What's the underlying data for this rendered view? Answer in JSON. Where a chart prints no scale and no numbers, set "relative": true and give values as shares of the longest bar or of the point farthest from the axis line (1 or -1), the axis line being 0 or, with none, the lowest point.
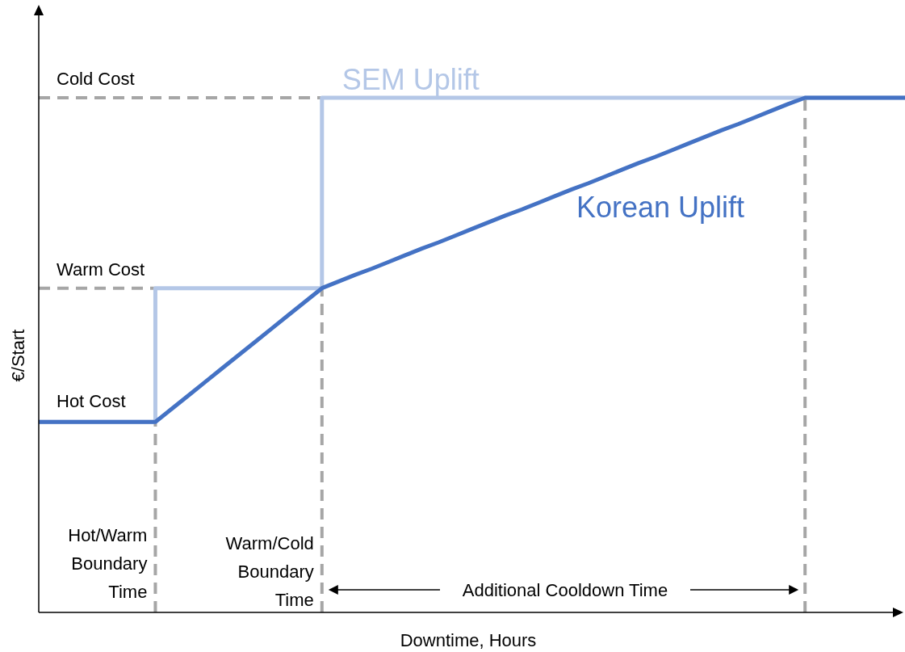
{
  "chart_data": {
    "type": "line",
    "relative": true,
    "xlabel": "Downtime, Hours",
    "ylabel": "€/Start",
    "categories": [
      null,
      null,
      null,
      null,
      null,
      null,
      null,
      null,
      null,
      null,
      null,
      null,
      null,
      null,
      null,
      null,
      null,
      null,
      null,
      null,
      null,
      null,
      null,
      null,
      null,
      null,
      null,
      null,
      null,
      null,
      null,
      null,
      null,
      null,
      null,
      null,
      null,
      null,
      null,
      null,
      null,
      null,
      null,
      null,
      null,
      null,
      null,
      null,
      null,
      null,
      null,
      null,
      null
    ],
    "series": [
      {
        "name": "SEM Uplift",
        "type": "step",
        "color": "#b4c7e7",
        "values": [
          0.37,
          0.37,
          0.37,
          0.37,
          0.37,
          0.37,
          0.37,
          0.63,
          0.63,
          0.63,
          0.63,
          0.63,
          0.63,
          0.63,
          0.63,
          0.63,
          0.63,
          1,
          1,
          1,
          1,
          1,
          1,
          1,
          1,
          1,
          1,
          1,
          1,
          1,
          1,
          1,
          1,
          1,
          1,
          1,
          1,
          1,
          1,
          1,
          1,
          1,
          1,
          1,
          1,
          1,
          1,
          1,
          1,
          1,
          1,
          1,
          1
        ]
      },
      {
        "name": "Korean Uplift",
        "color": "#4472c4",
        "values": [
          0.37,
          0.37,
          0.37,
          0.37,
          0.37,
          0.37,
          0.37,
          0.37,
          0.396,
          0.422,
          0.448,
          0.474,
          0.5,
          0.526,
          0.552,
          0.578,
          0.604,
          0.63,
          0.643,
          0.656,
          0.668,
          0.681,
          0.694,
          0.707,
          0.719,
          0.732,
          0.745,
          0.758,
          0.771,
          0.783,
          0.796,
          0.809,
          0.822,
          0.834,
          0.847,
          0.86,
          0.873,
          0.885,
          0.898,
          0.911,
          0.924,
          0.937,
          0.949,
          0.962,
          0.975,
          0.988,
          1,
          1,
          1,
          1,
          1,
          1,
          1
        ]
      }
    ],
    "ref_lines": [
      {
        "axis": "y",
        "value": 1,
        "label": "Cold Cost",
        "color": "#a6a6a6",
        "line_style": "dashed"
      },
      {
        "axis": "y",
        "value": 0.63,
        "label": "Warm Cost",
        "color": "#a6a6a6",
        "line_style": "dashed"
      }
    ],
    "annotations": [
      "Hot Cost",
      "Hot/Warm Boundary Time",
      "Warm/Cold Boundary Time",
      "Additional Cooldown Time"
    ]
  }
}
